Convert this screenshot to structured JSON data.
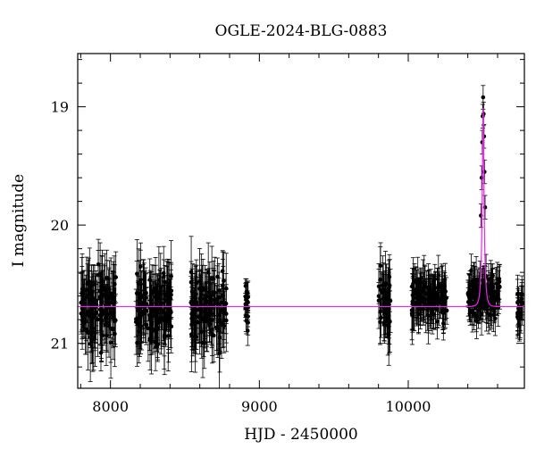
{
  "chart_data": {
    "type": "scatter",
    "title": "OGLE-2024-BLG-0883",
    "xlabel": "HJD - 2450000",
    "ylabel": "I magnitude",
    "xlim": [
      7780,
      10780
    ],
    "ylim": [
      21.38,
      18.55
    ],
    "y_inverted": true,
    "grid": false,
    "x_ticks": [
      8000,
      9000,
      10000
    ],
    "y_ticks": [
      19,
      20,
      21
    ],
    "marker_color": "#000000",
    "model_color": "#ee22ee",
    "series": [
      {
        "kind": "photometry",
        "seasons": [
          {
            "x_start": 7800,
            "x_end": 8040,
            "mag_center": 20.7,
            "mag_scatter": 0.35,
            "err_min": 0.14,
            "err_max": 0.32
          },
          {
            "x_start": 8170,
            "x_end": 8410,
            "mag_center": 20.7,
            "mag_scatter": 0.35,
            "err_min": 0.14,
            "err_max": 0.32
          },
          {
            "x_start": 8540,
            "x_end": 8780,
            "mag_center": 20.7,
            "mag_scatter": 0.35,
            "err_min": 0.14,
            "err_max": 0.32
          },
          {
            "x_start": 8905,
            "x_end": 8925,
            "mag_center": 20.7,
            "mag_scatter": 0.28,
            "err_min": 0.06,
            "err_max": 0.14
          },
          {
            "x_start": 9800,
            "x_end": 9880,
            "mag_center": 20.65,
            "mag_scatter": 0.35,
            "err_min": 0.14,
            "err_max": 0.3
          },
          {
            "x_start": 10020,
            "x_end": 10260,
            "mag_center": 20.62,
            "mag_scatter": 0.22,
            "err_min": 0.1,
            "err_max": 0.25
          },
          {
            "x_start": 10400,
            "x_end": 10620,
            "mag_center": 20.6,
            "mag_scatter": 0.22,
            "err_min": 0.08,
            "err_max": 0.2
          },
          {
            "x_start": 10730,
            "x_end": 10770,
            "mag_center": 20.7,
            "mag_scatter": 0.2,
            "err_min": 0.12,
            "err_max": 0.2
          }
        ],
        "peak_points": [
          {
            "x": 10488,
            "y": 19.92
          },
          {
            "x": 10493,
            "y": 19.6
          },
          {
            "x": 10497,
            "y": 19.3
          },
          {
            "x": 10500,
            "y": 19.08
          },
          {
            "x": 10503,
            "y": 18.92
          },
          {
            "x": 10506,
            "y": 19.06
          },
          {
            "x": 10509,
            "y": 19.25
          },
          {
            "x": 10512,
            "y": 19.55
          },
          {
            "x": 10516,
            "y": 19.85
          }
        ]
      },
      {
        "kind": "model",
        "baseline": 20.69,
        "t0": 10503,
        "peak": 19.0,
        "tE": 15
      }
    ]
  }
}
